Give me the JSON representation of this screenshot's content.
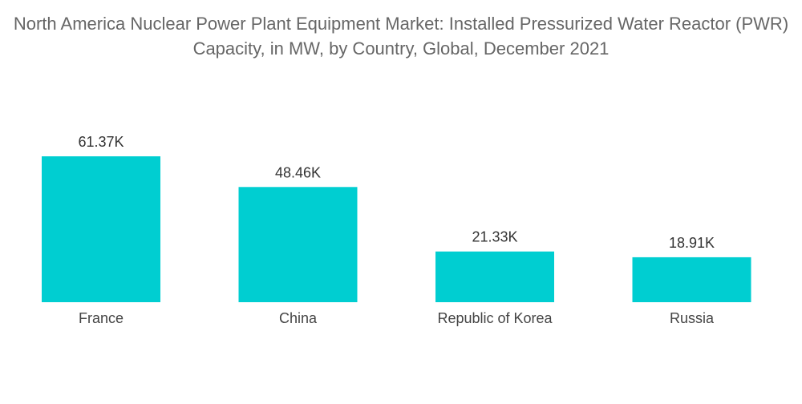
{
  "chart_data": {
    "type": "bar",
    "title": "North America Nuclear Power Plant Equipment Market: Installed Pressurized Water Reactor (PWR) Capacity, in MW, by Country, Global, December 2021",
    "categories": [
      "France",
      "China",
      "Republic of Korea",
      "Russia"
    ],
    "values": [
      61370,
      48460,
      21330,
      18910
    ],
    "data_labels": [
      "61.37K",
      "48.46K",
      "21.33K",
      "18.91K"
    ],
    "ylim": [
      0,
      61370
    ],
    "grid": false,
    "legend": "none",
    "bar_color": "#00CED1"
  }
}
